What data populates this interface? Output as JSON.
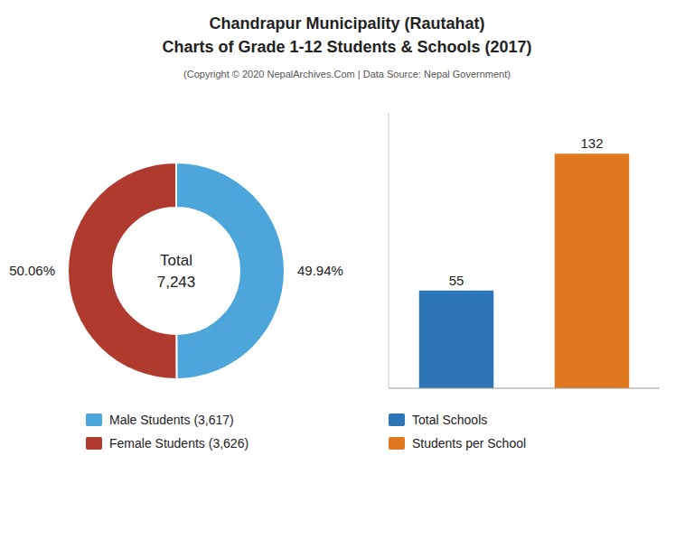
{
  "title": [
    "Chandrapur Municipality (Rautahat)",
    "Charts of Grade 1-12 Students & Schools (2017)"
  ],
  "subtitle": "(Copyright © 2020 NepalArchives.Com | Data Source: Nepal Government)",
  "chart_data": [
    {
      "type": "donut",
      "categories": [
        "Male Students (3,617)",
        "Female Students (3,626)"
      ],
      "values": [
        49.94,
        50.06
      ],
      "value_labels": [
        "49.94%",
        "50.06%"
      ],
      "colors": [
        "#4da6d9",
        "#b03a2e"
      ],
      "annotations": [
        "Total",
        "7,243"
      ],
      "data_labels": true,
      "legend": "bottom"
    },
    {
      "type": "bar",
      "categories": [
        "Total Schools",
        "Students per School"
      ],
      "values": [
        55,
        132
      ],
      "colors": [
        "#2e75b6",
        "#e07820"
      ],
      "ylim": [
        0,
        155
      ],
      "data_labels": true,
      "tick_labels": false,
      "legend": "bottom"
    }
  ]
}
